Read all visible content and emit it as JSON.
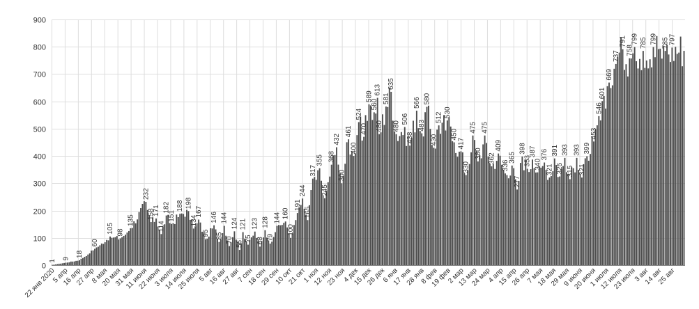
{
  "chart_data": {
    "type": "bar",
    "title": "",
    "xlabel": "",
    "ylabel": "",
    "ylim": [
      0,
      900
    ],
    "yticks": [
      0,
      100,
      200,
      300,
      400,
      500,
      600,
      700,
      800,
      900
    ],
    "grid": true,
    "legend": "none",
    "bar_color": "#4d4d4d",
    "x_tick_labels": [
      "22 янв 2020",
      "5 апр",
      "16 апр",
      "27 апр",
      "8 мая",
      "20 мая",
      "31 мая",
      "11 июня",
      "22 июня",
      "3 июля",
      "14 июля",
      "25 июля",
      "5 авг",
      "16 авг",
      "27 авг",
      "7 сен",
      "18 сен",
      "29 сен",
      "10 окт",
      "21 окт",
      "1 ноя",
      "12 ноя",
      "23 ноя",
      "4 дек",
      "15 дек",
      "26 дек",
      "6 янв",
      "17 янв",
      "28 янв",
      "8 фев",
      "19 фев",
      "2 мар",
      "13 мар",
      "24 мар",
      "4 апр",
      "15 апр",
      "26 апр",
      "7 мая",
      "18 мая",
      "29 мая",
      "9 июня",
      "20 июня",
      "1 июля",
      "12 июля",
      "23 июля",
      "3 авг",
      "14 авг",
      "25 авг"
    ],
    "anchors": [
      [
        0,
        1
      ],
      [
        8,
        9
      ],
      [
        16,
        18
      ],
      [
        25,
        60
      ],
      [
        34,
        105
      ],
      [
        40,
        98
      ],
      [
        46,
        135
      ],
      [
        55,
        232
      ],
      [
        58,
        158
      ],
      [
        61,
        171
      ],
      [
        64,
        114
      ],
      [
        67,
        182
      ],
      [
        70,
        151
      ],
      [
        75,
        188
      ],
      [
        80,
        198
      ],
      [
        83,
        134
      ],
      [
        86,
        167
      ],
      [
        90,
        95
      ],
      [
        95,
        146
      ],
      [
        98,
        85
      ],
      [
        101,
        144
      ],
      [
        104,
        70
      ],
      [
        107,
        124
      ],
      [
        110,
        56
      ],
      [
        112,
        121
      ],
      [
        115,
        75
      ],
      [
        119,
        123
      ],
      [
        122,
        68
      ],
      [
        125,
        128
      ],
      [
        128,
        79
      ],
      [
        132,
        144
      ],
      [
        137,
        160
      ],
      [
        140,
        100
      ],
      [
        144,
        191
      ],
      [
        147,
        244
      ],
      [
        150,
        165
      ],
      [
        153,
        317
      ],
      [
        157,
        355
      ],
      [
        160,
        245
      ],
      [
        164,
        368
      ],
      [
        167,
        432
      ],
      [
        170,
        300
      ],
      [
        174,
        461
      ],
      [
        177,
        400
      ],
      [
        180,
        524
      ],
      [
        183,
        470
      ],
      [
        186,
        589
      ],
      [
        189,
        560
      ],
      [
        191,
        613
      ],
      [
        192,
        480
      ],
      [
        196,
        581
      ],
      [
        199,
        635
      ],
      [
        202,
        480
      ],
      [
        207,
        506
      ],
      [
        210,
        438
      ],
      [
        214,
        566
      ],
      [
        217,
        483
      ],
      [
        220,
        580
      ],
      [
        224,
        430
      ],
      [
        227,
        512
      ],
      [
        232,
        530
      ],
      [
        236,
        450
      ],
      [
        240,
        417
      ],
      [
        243,
        330
      ],
      [
        247,
        475
      ],
      [
        250,
        380
      ],
      [
        254,
        475
      ],
      [
        258,
        362
      ],
      [
        262,
        409
      ],
      [
        266,
        336
      ],
      [
        270,
        365
      ],
      [
        273,
        277
      ],
      [
        276,
        398
      ],
      [
        279,
        353
      ],
      [
        282,
        387
      ],
      [
        285,
        340
      ],
      [
        289,
        376
      ],
      [
        292,
        321
      ],
      [
        295,
        391
      ],
      [
        298,
        325
      ],
      [
        301,
        393
      ],
      [
        304,
        315
      ],
      [
        308,
        393
      ],
      [
        311,
        321
      ],
      [
        314,
        399
      ],
      [
        318,
        453
      ],
      [
        321,
        546
      ],
      [
        323,
        601
      ],
      [
        327,
        669
      ],
      [
        331,
        737
      ],
      [
        335,
        791
      ],
      [
        339,
        758
      ],
      [
        342,
        799
      ],
      [
        347,
        785
      ],
      [
        350,
        790
      ],
      [
        353,
        799
      ],
      [
        356,
        812
      ],
      [
        360,
        785
      ],
      [
        364,
        797
      ],
      [
        371,
        800
      ]
    ],
    "data_labels": [
      [
        0,
        1
      ],
      [
        8,
        9
      ],
      [
        16,
        18
      ],
      [
        25,
        60
      ],
      [
        34,
        105
      ],
      [
        40,
        98
      ],
      [
        46,
        135
      ],
      [
        55,
        232
      ],
      [
        58,
        158
      ],
      [
        61,
        171
      ],
      [
        64,
        114
      ],
      [
        67,
        182
      ],
      [
        70,
        151
      ],
      [
        75,
        188
      ],
      [
        80,
        198
      ],
      [
        83,
        134
      ],
      [
        86,
        167
      ],
      [
        90,
        95
      ],
      [
        95,
        146
      ],
      [
        98,
        85
      ],
      [
        101,
        144
      ],
      [
        104,
        70
      ],
      [
        107,
        124
      ],
      [
        110,
        56
      ],
      [
        112,
        121
      ],
      [
        115,
        75
      ],
      [
        119,
        123
      ],
      [
        122,
        68
      ],
      [
        125,
        128
      ],
      [
        128,
        79
      ],
      [
        132,
        144
      ],
      [
        137,
        160
      ],
      [
        140,
        100
      ],
      [
        144,
        191
      ],
      [
        147,
        244
      ],
      [
        150,
        165
      ],
      [
        153,
        317
      ],
      [
        157,
        355
      ],
      [
        160,
        245
      ],
      [
        164,
        368
      ],
      [
        167,
        432
      ],
      [
        170,
        300
      ],
      [
        174,
        461
      ],
      [
        177,
        400
      ],
      [
        180,
        524
      ],
      [
        183,
        470
      ],
      [
        186,
        589
      ],
      [
        189,
        560
      ],
      [
        191,
        613
      ],
      [
        192,
        480
      ],
      [
        196,
        581
      ],
      [
        199,
        635
      ],
      [
        202,
        480
      ],
      [
        207,
        506
      ],
      [
        210,
        438
      ],
      [
        214,
        566
      ],
      [
        217,
        483
      ],
      [
        220,
        580
      ],
      [
        224,
        430
      ],
      [
        227,
        512
      ],
      [
        232,
        530
      ],
      [
        236,
        450
      ],
      [
        240,
        417
      ],
      [
        243,
        330
      ],
      [
        247,
        475
      ],
      [
        250,
        380
      ],
      [
        254,
        475
      ],
      [
        258,
        362
      ],
      [
        262,
        409
      ],
      [
        266,
        336
      ],
      [
        270,
        365
      ],
      [
        273,
        277
      ],
      [
        276,
        398
      ],
      [
        279,
        353
      ],
      [
        282,
        387
      ],
      [
        285,
        340
      ],
      [
        289,
        376
      ],
      [
        292,
        321
      ],
      [
        295,
        391
      ],
      [
        298,
        325
      ],
      [
        301,
        393
      ],
      [
        304,
        315
      ],
      [
        308,
        393
      ],
      [
        311,
        321
      ],
      [
        314,
        399
      ],
      [
        318,
        453
      ],
      [
        321,
        546
      ],
      [
        323,
        601
      ],
      [
        327,
        669
      ],
      [
        331,
        737
      ],
      [
        335,
        791
      ],
      [
        339,
        758
      ],
      [
        342,
        799
      ],
      [
        347,
        785
      ],
      [
        353,
        799
      ],
      [
        360,
        785
      ],
      [
        364,
        797
      ]
    ]
  }
}
